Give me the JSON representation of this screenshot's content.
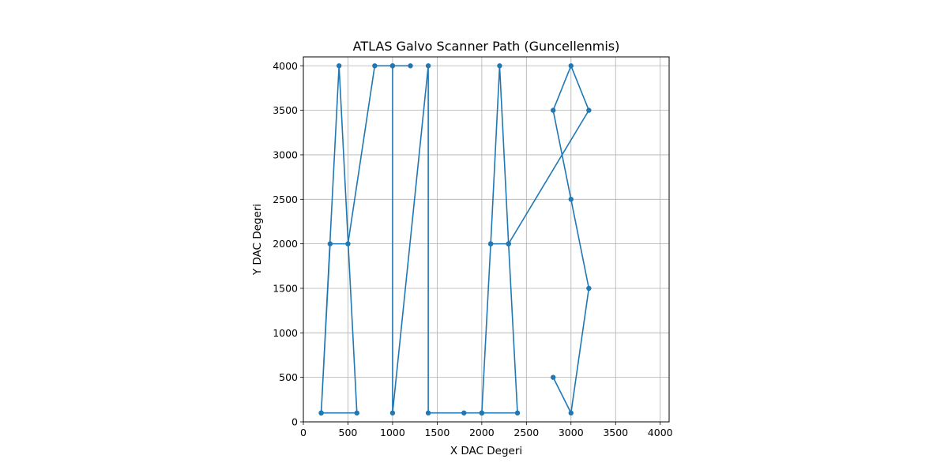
{
  "chart_data": {
    "type": "line",
    "title": "ATLAS Galvo Scanner Path (Guncellenmis)",
    "xlabel": "X DAC Degeri",
    "ylabel": "Y DAC Degeri",
    "xlim": [
      0,
      4100
    ],
    "ylim": [
      0,
      4100
    ],
    "xticks": [
      0,
      500,
      1000,
      1500,
      2000,
      2500,
      3000,
      3500,
      4000
    ],
    "yticks": [
      0,
      500,
      1000,
      1500,
      2000,
      2500,
      3000,
      3500,
      4000
    ],
    "grid": true,
    "marker": "circle",
    "color": "#1f77b4",
    "series": [
      {
        "x": [
          200,
          400,
          600,
          200,
          300,
          500,
          800,
          1000,
          1200,
          1000,
          1000,
          1400,
          1400,
          1800,
          2000,
          2100,
          2200,
          2300,
          2400,
          2000,
          2100,
          2300,
          3200,
          3000,
          2800,
          3000,
          3200,
          3000,
          2800
        ],
        "y": [
          100,
          4000,
          100,
          100,
          2000,
          2000,
          4000,
          4000,
          4000,
          4000,
          100,
          4000,
          100,
          100,
          100,
          2000,
          4000,
          2000,
          100,
          100,
          2000,
          2000,
          3500,
          4000,
          3500,
          2500,
          1500,
          100,
          500
        ]
      }
    ]
  }
}
